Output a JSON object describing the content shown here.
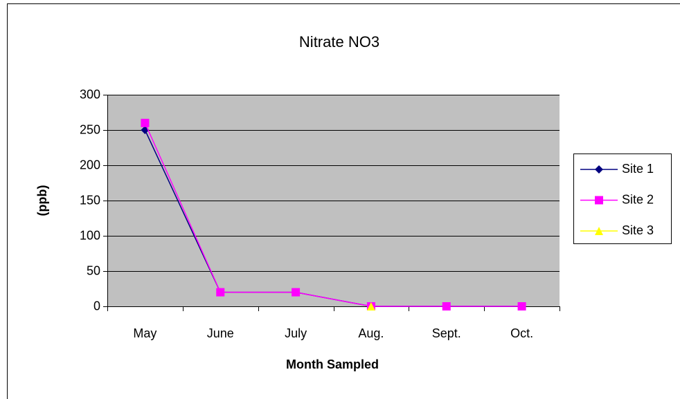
{
  "chart_data": {
    "type": "line",
    "title": "Nitrate NO3",
    "xlabel": "Month Sampled",
    "ylabel": "(ppb)",
    "categories": [
      "May",
      "June",
      "July",
      "Aug.",
      "Sept.",
      "Oct."
    ],
    "series": [
      {
        "name": "Site 1",
        "color": "#000080",
        "marker": "diamond",
        "values": [
          250,
          20,
          20,
          0,
          0,
          0
        ]
      },
      {
        "name": "Site 2",
        "color": "#ff00ff",
        "marker": "square",
        "values": [
          260,
          20,
          20,
          0,
          0,
          0
        ]
      },
      {
        "name": "Site 3",
        "color": "#ffff00",
        "marker": "triangle",
        "values": [
          null,
          null,
          null,
          0,
          null,
          null
        ]
      }
    ],
    "ylim": [
      0,
      300
    ],
    "yticks": [
      0,
      50,
      100,
      150,
      200,
      250,
      300
    ],
    "grid": true,
    "legend": "right",
    "plot_background": "#c0c0c0"
  }
}
